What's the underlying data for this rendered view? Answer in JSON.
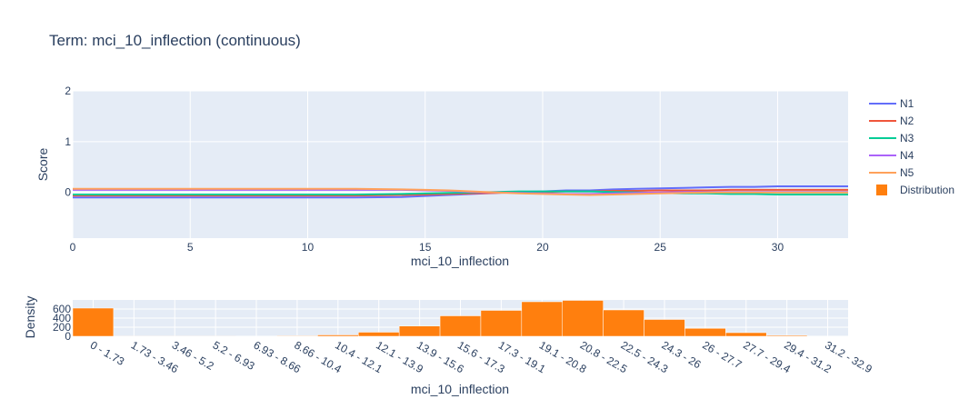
{
  "chart_data": [
    {
      "type": "line",
      "title": "Term: mci_10_inflection (continuous)",
      "xlabel": "mci_10_inflection",
      "ylabel": "Score",
      "xlim": [
        0,
        33
      ],
      "ylim": [
        -0.9,
        2
      ],
      "x_ticks": [
        "0",
        "5",
        "10",
        "15",
        "20",
        "25",
        "30"
      ],
      "y_ticks": [
        "0",
        "1",
        "2"
      ],
      "x": [
        0,
        4,
        8,
        12,
        14,
        15,
        16,
        17,
        18,
        19,
        20,
        21,
        22,
        23,
        24,
        25,
        26,
        27,
        28,
        29,
        30,
        31,
        33
      ],
      "series": [
        {
          "name": "N1",
          "color": "#636efa",
          "values": [
            -0.1,
            -0.1,
            -0.1,
            -0.1,
            -0.09,
            -0.07,
            -0.05,
            -0.03,
            -0.01,
            0.01,
            0.02,
            0.04,
            0.04,
            0.06,
            0.07,
            0.08,
            0.09,
            0.1,
            0.11,
            0.11,
            0.12,
            0.12,
            0.12
          ]
        },
        {
          "name": "N2",
          "color": "#ef553b",
          "values": [
            -0.06,
            -0.06,
            -0.06,
            -0.06,
            -0.05,
            -0.04,
            -0.03,
            -0.02,
            -0.01,
            0.0,
            0.01,
            0.02,
            0.02,
            0.03,
            0.03,
            0.04,
            0.04,
            0.04,
            0.05,
            0.05,
            0.05,
            0.05,
            0.05
          ]
        },
        {
          "name": "N3",
          "color": "#00cc96",
          "values": [
            -0.04,
            -0.04,
            -0.04,
            -0.04,
            -0.03,
            -0.02,
            -0.01,
            0.0,
            0.01,
            0.02,
            0.02,
            0.02,
            0.02,
            0.01,
            0.0,
            -0.01,
            -0.02,
            -0.02,
            -0.03,
            -0.03,
            -0.04,
            -0.04,
            -0.04
          ]
        },
        {
          "name": "N4",
          "color": "#ab63fa",
          "values": [
            0.05,
            0.05,
            0.05,
            0.05,
            0.05,
            0.04,
            0.03,
            0.01,
            0.0,
            -0.01,
            -0.02,
            -0.03,
            -0.03,
            -0.02,
            -0.01,
            0.0,
            0.01,
            0.01,
            0.01,
            0.01,
            0.01,
            0.01,
            0.01
          ]
        },
        {
          "name": "N5",
          "color": "#ffa15a",
          "values": [
            0.07,
            0.07,
            0.07,
            0.07,
            0.06,
            0.05,
            0.04,
            0.02,
            0.0,
            -0.02,
            -0.03,
            -0.04,
            -0.05,
            -0.04,
            -0.03,
            -0.02,
            -0.01,
            0.0,
            0.0,
            0.0,
            0.0,
            0.0,
            0.0
          ]
        }
      ],
      "legend_position": "right",
      "grid": true
    },
    {
      "type": "bar",
      "name": "Distribution",
      "color": "#ff7f0e",
      "xlabel": "mci_10_inflection",
      "ylabel": "Density",
      "ylim": [
        0,
        800
      ],
      "y_ticks": [
        "0",
        "200",
        "400",
        "600"
      ],
      "categories": [
        "0 - 1.73",
        "1.73 - 3.46",
        "3.46 - 5.2",
        "5.2 - 6.93",
        "6.93 - 8.66",
        "8.66 - 10.4",
        "10.4 - 12.1",
        "12.1 - 13.9",
        "13.9 - 15.6",
        "15.6 - 17.3",
        "17.3 - 19.1",
        "19.1 - 20.8",
        "20.8 - 22.5",
        "22.5 - 24.3",
        "24.3 - 26",
        "26 - 27.7",
        "27.7 - 29.4",
        "29.4 - 31.2",
        "31.2 - 32.9"
      ],
      "values": [
        620,
        2,
        2,
        3,
        5,
        12,
        30,
        90,
        225,
        450,
        570,
        760,
        790,
        580,
        370,
        175,
        80,
        20,
        5
      ],
      "grid": true
    }
  ]
}
